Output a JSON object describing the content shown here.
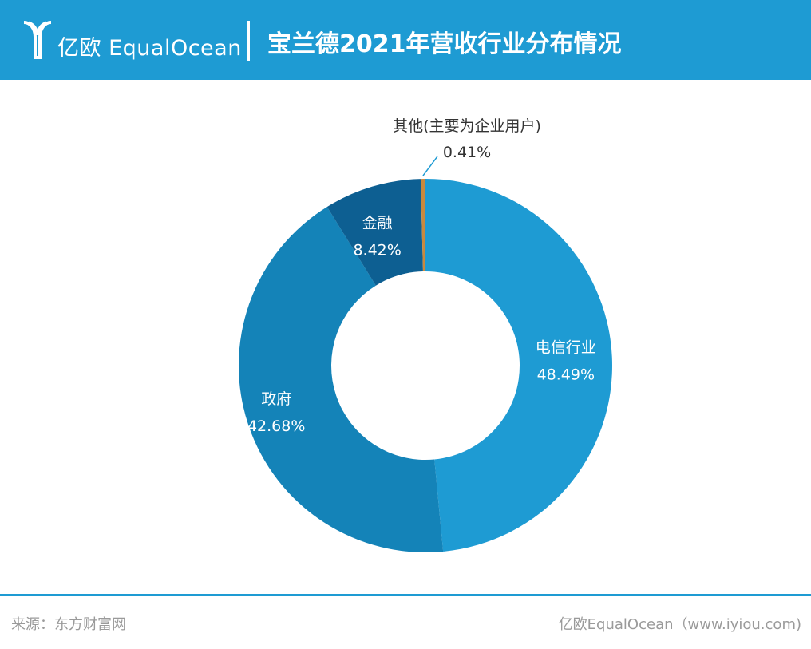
{
  "header": {
    "logo_text": "亿欧 EqualOcean",
    "title": "宝兰德2021年营收行业分布情况"
  },
  "chart_data": {
    "type": "pie",
    "subtype": "donut",
    "title": "宝兰德2021年营收行业分布情况",
    "slices": [
      {
        "label": "电信行业",
        "value": 48.49,
        "value_label": "48.49%",
        "color": "#1e9bd3"
      },
      {
        "label": "政府",
        "value": 42.68,
        "value_label": "42.68%",
        "color": "#1483b8"
      },
      {
        "label": "金融",
        "value": 8.42,
        "value_label": "8.42%",
        "color": "#0d5f92"
      },
      {
        "label": "其他(主要为企业用户)",
        "value": 0.41,
        "value_label": "0.41%",
        "color": "#c8893e"
      }
    ]
  },
  "footer": {
    "source": "来源：东方财富网",
    "credit": "亿欧EqualOcean（www.iyiou.com)"
  }
}
